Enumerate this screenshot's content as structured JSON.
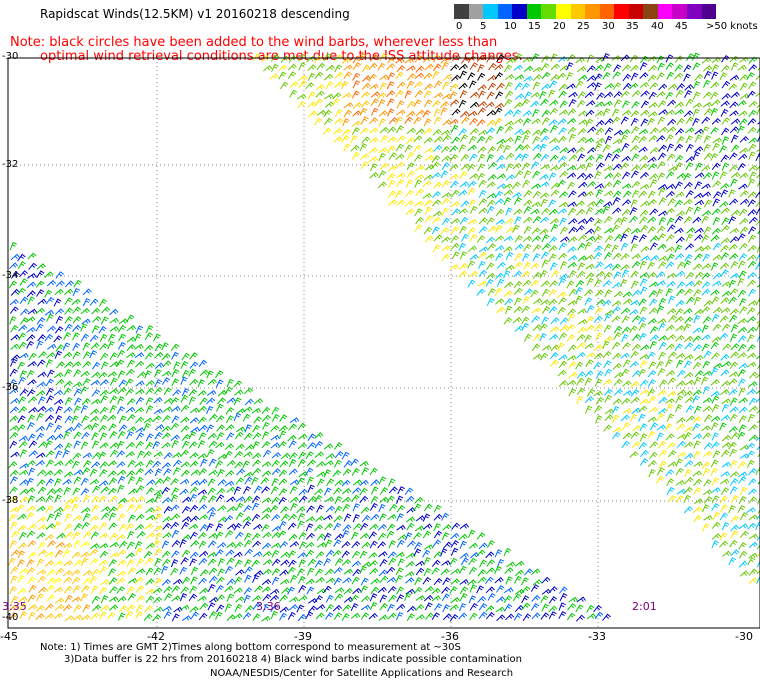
{
  "title": "Rapidscat Winds(12.5KM) v1 20160218 descending",
  "note_line1": "Note: black circles have been added to the wind barbs, wherever less than",
  "note_line2": "optimal wind retrieval conditions are met due to the ISS attitude changes.",
  "colorbar": {
    "labels": [
      "0",
      "5",
      "10",
      "15",
      "20",
      "25",
      "30",
      "35",
      "40",
      "45",
      ">50 knots"
    ],
    "colors": [
      "#404040",
      "#a0a0a0",
      "#00c8ff",
      "#0064ff",
      "#0000c8",
      "#00c800",
      "#64dc00",
      "#ffff00",
      "#ffc800",
      "#ff9600",
      "#ff6400",
      "#ff0000",
      "#c80000",
      "#8b4513",
      "#ff00ff",
      "#c800c8",
      "#8000c0",
      "#500090"
    ]
  },
  "lat_labels": [
    "-30",
    "-32",
    "-34",
    "-36",
    "-38",
    "-40"
  ],
  "lon_labels": [
    "-45",
    "-42",
    "-39",
    "-36",
    "-33",
    "-30"
  ],
  "time_labels": [
    "3:35",
    "3:36",
    "2:01"
  ],
  "footnote1": "Note: 1) Times are GMT 2)Times along bottom correspond to measurement at ~30S",
  "footnote2": "3)Data buffer is 22 hrs from 20160218 4) Black wind barbs indicate possible contamination",
  "credit": "NOAA/NESDIS/Center for Satellite Applications and Research"
}
